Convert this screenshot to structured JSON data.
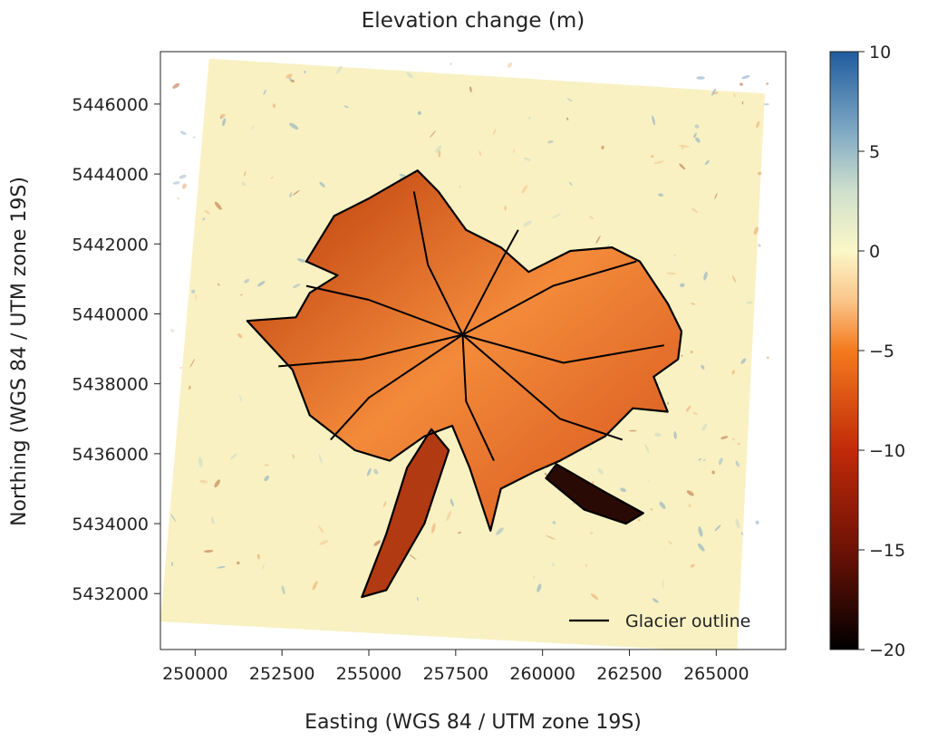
{
  "chart_data": {
    "type": "heatmap",
    "title": "Elevation change (m)",
    "xlabel": "Easting (WGS 84 / UTM zone 19S)",
    "ylabel": "Northing (WGS 84 / UTM zone 19S)",
    "xlim": [
      249000,
      267000
    ],
    "ylim": [
      5430400,
      5447500
    ],
    "x_ticks": [
      250000,
      252500,
      255000,
      257500,
      260000,
      262500,
      265000
    ],
    "y_ticks": [
      5432000,
      5434000,
      5436000,
      5438000,
      5440000,
      5442000,
      5444000,
      5446000
    ],
    "colorbar": {
      "label": "Elevation change (m)",
      "range": [
        -20,
        10
      ],
      "ticks": [
        10,
        5,
        0,
        -5,
        -10,
        -15,
        -20
      ],
      "tick_labels": [
        "10",
        "5",
        "0",
        "−5",
        "−10",
        "−15",
        "−20"
      ],
      "colormap_stops": [
        {
          "value": 10,
          "color": "#1f5c9e"
        },
        {
          "value": 6,
          "color": "#7fa9c4"
        },
        {
          "value": 3,
          "color": "#cfe0cc"
        },
        {
          "value": 0,
          "color": "#fbf7c8"
        },
        {
          "value": -2.5,
          "color": "#fbc58a"
        },
        {
          "value": -5,
          "color": "#f47a1e"
        },
        {
          "value": -10,
          "color": "#c12a08"
        },
        {
          "value": -15,
          "color": "#6e1206"
        },
        {
          "value": -20,
          "color": "#000000"
        }
      ]
    },
    "raster_extent_corners": [
      [
        250400,
        5447300
      ],
      [
        266400,
        5446300
      ],
      [
        265600,
        5430300
      ],
      [
        249000,
        5431200
      ]
    ],
    "glacier_outline_polygon": [
      [
        253200,
        5441500
      ],
      [
        254000,
        5442800
      ],
      [
        255000,
        5443300
      ],
      [
        256400,
        5444100
      ],
      [
        257000,
        5443500
      ],
      [
        257800,
        5442400
      ],
      [
        258800,
        5441900
      ],
      [
        259600,
        5441200
      ],
      [
        260800,
        5441800
      ],
      [
        262000,
        5441900
      ],
      [
        262800,
        5441500
      ],
      [
        263600,
        5440300
      ],
      [
        264000,
        5439500
      ],
      [
        263900,
        5438700
      ],
      [
        263200,
        5438200
      ],
      [
        263600,
        5437200
      ],
      [
        262600,
        5437300
      ],
      [
        261800,
        5436500
      ],
      [
        260500,
        5435800
      ],
      [
        259800,
        5435500
      ],
      [
        258800,
        5435000
      ],
      [
        258500,
        5433800
      ],
      [
        257900,
        5435600
      ],
      [
        257400,
        5436800
      ],
      [
        256600,
        5436500
      ],
      [
        255600,
        5435800
      ],
      [
        254600,
        5436100
      ],
      [
        253300,
        5437100
      ],
      [
        252800,
        5438400
      ],
      [
        251500,
        5439800
      ],
      [
        252900,
        5439900
      ],
      [
        253300,
        5440600
      ],
      [
        254100,
        5441100
      ]
    ],
    "southern_tongue_polygon": [
      [
        256800,
        5436700
      ],
      [
        257300,
        5436100
      ],
      [
        256600,
        5434000
      ],
      [
        255500,
        5432100
      ],
      [
        254800,
        5431900
      ],
      [
        255500,
        5433700
      ],
      [
        256100,
        5435600
      ]
    ],
    "southeast_tongue_polygon": [
      [
        260400,
        5435700
      ],
      [
        261800,
        5434900
      ],
      [
        262900,
        5434300
      ],
      [
        262400,
        5434000
      ],
      [
        261200,
        5434400
      ],
      [
        260100,
        5435300
      ]
    ],
    "divides": [
      [
        [
          257700,
          5439400
        ],
        [
          256700,
          5441400
        ],
        [
          256300,
          5443500
        ]
      ],
      [
        [
          257700,
          5439400
        ],
        [
          255000,
          5440400
        ],
        [
          253200,
          5440800
        ]
      ],
      [
        [
          257700,
          5439400
        ],
        [
          254800,
          5438700
        ],
        [
          252400,
          5438500
        ]
      ],
      [
        [
          257700,
          5439400
        ],
        [
          255000,
          5437600
        ],
        [
          253900,
          5436400
        ]
      ],
      [
        [
          257700,
          5439400
        ],
        [
          257800,
          5437500
        ],
        [
          258600,
          5435800
        ]
      ],
      [
        [
          257700,
          5439400
        ],
        [
          260500,
          5437000
        ],
        [
          262300,
          5436400
        ]
      ],
      [
        [
          257700,
          5439400
        ],
        [
          260600,
          5438600
        ],
        [
          263500,
          5439100
        ]
      ],
      [
        [
          257700,
          5439400
        ],
        [
          260300,
          5440800
        ],
        [
          262700,
          5441500
        ]
      ],
      [
        [
          257700,
          5439400
        ],
        [
          258800,
          5441500
        ],
        [
          259300,
          5442400
        ]
      ]
    ],
    "legend": {
      "position": "lower right",
      "entries": [
        {
          "label": "Glacier outline",
          "style": "black-line"
        }
      ]
    }
  }
}
